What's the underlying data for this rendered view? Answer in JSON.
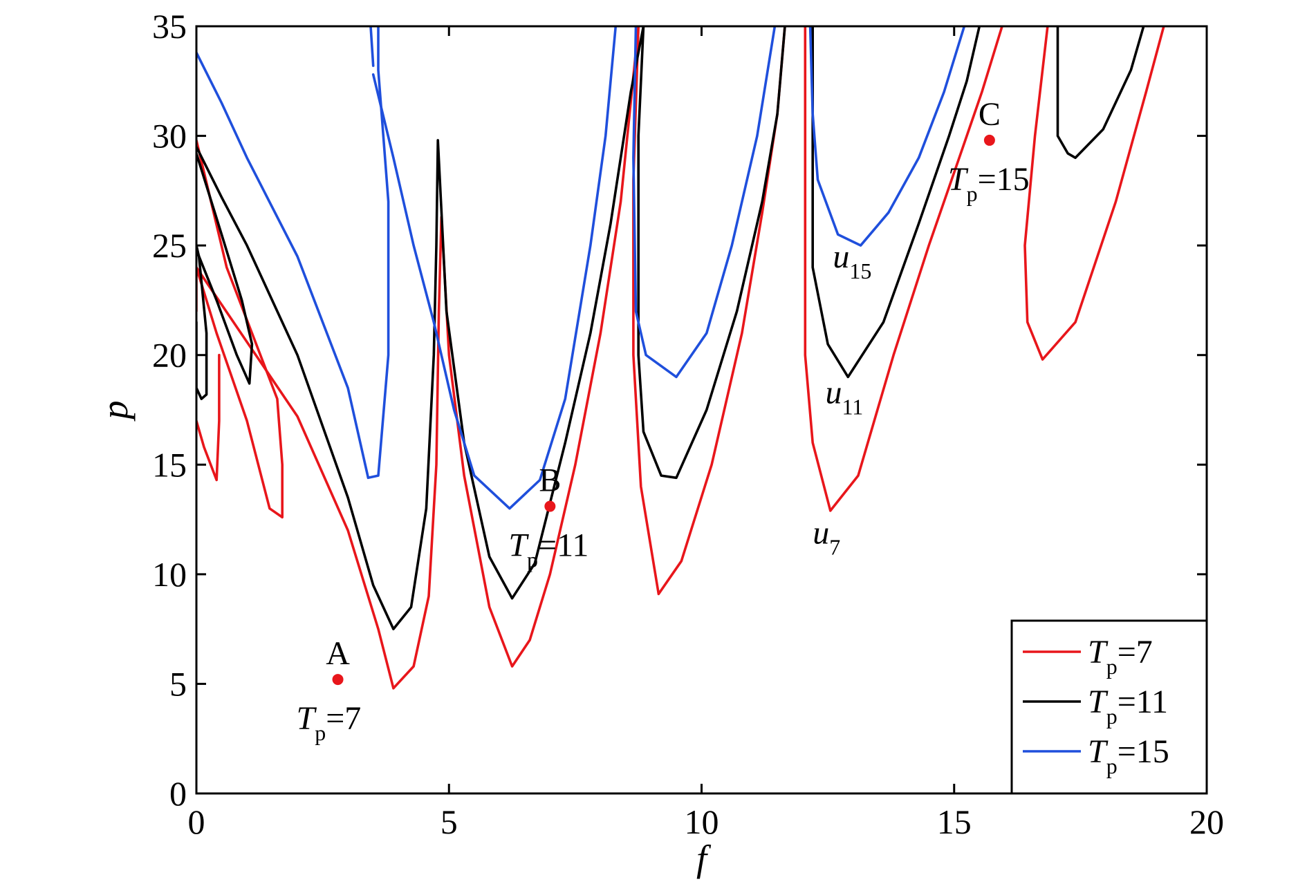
{
  "chart_data": {
    "type": "line",
    "title": "",
    "xlabel": "f",
    "ylabel": "p",
    "xlim": [
      0,
      20
    ],
    "ylim": [
      0,
      35
    ],
    "xticks": [
      0,
      5,
      10,
      15,
      20
    ],
    "yticks": [
      0,
      5,
      10,
      15,
      20,
      25,
      30,
      35
    ],
    "grid": false,
    "legend": {
      "position": "bottom-right",
      "entries": [
        {
          "var": "T",
          "sub": "p",
          "rest": "=7",
          "color": "#e8161b"
        },
        {
          "var": "T",
          "sub": "p",
          "rest": "=11",
          "color": "#000000"
        },
        {
          "var": "T",
          "sub": "p",
          "rest": "=15",
          "color": "#1f4fdc"
        }
      ]
    },
    "series": [
      {
        "key": "Tp7",
        "color": "#e8161b",
        "segments": [
          [
            [
              0,
              17
            ],
            [
              0.15,
              15.8
            ],
            [
              0.4,
              14.3
            ],
            [
              0.45,
              17
            ],
            [
              0.45,
              20
            ]
          ],
          [
            [
              0,
              22
            ],
            [
              0,
              24
            ],
            [
              0.4,
              21
            ],
            [
              1,
              17
            ],
            [
              1.45,
              13
            ],
            [
              1.7,
              12.6
            ],
            [
              1.7,
              15
            ],
            [
              1.6,
              18
            ],
            [
              1.1,
              21
            ],
            [
              0.6,
              24
            ],
            [
              0,
              29.8
            ]
          ],
          [
            [
              0,
              24
            ],
            [
              1,
              20.6
            ],
            [
              2,
              17.2
            ],
            [
              3,
              12
            ],
            [
              3.6,
              7.5
            ],
            [
              3.9,
              4.8
            ],
            [
              4.3,
              5.8
            ],
            [
              4.6,
              9
            ],
            [
              4.75,
              15
            ],
            [
              4.8,
              22
            ],
            [
              4.85,
              26.3
            ],
            [
              5,
              20
            ],
            [
              5.3,
              14.5
            ],
            [
              5.8,
              8.5
            ],
            [
              6.25,
              5.8
            ],
            [
              6.6,
              7
            ],
            [
              7,
              10
            ],
            [
              7.5,
              15
            ],
            [
              8,
              21
            ],
            [
              8.4,
              27
            ],
            [
              8.75,
              35
            ]
          ],
          [
            [
              8.75,
              35
            ],
            [
              8.65,
              28
            ],
            [
              8.65,
              20
            ],
            [
              8.8,
              14
            ],
            [
              9.15,
              9.1
            ],
            [
              9.6,
              10.6
            ],
            [
              10.2,
              15
            ],
            [
              10.8,
              21
            ],
            [
              11.2,
              26.5
            ],
            [
              11.5,
              31
            ],
            [
              11.65,
              35
            ]
          ],
          [
            [
              12.05,
              35
            ],
            [
              12.05,
              28
            ],
            [
              12.05,
              20
            ],
            [
              12.2,
              16
            ],
            [
              12.55,
              12.9
            ],
            [
              13.1,
              14.5
            ],
            [
              13.8,
              20
            ],
            [
              14.5,
              25
            ],
            [
              15.1,
              29
            ],
            [
              15.55,
              32
            ],
            [
              15.95,
              35
            ]
          ],
          [
            [
              16.85,
              35
            ],
            [
              16.6,
              30
            ],
            [
              16.4,
              25
            ],
            [
              16.45,
              21.5
            ],
            [
              16.75,
              19.8
            ],
            [
              17.4,
              21.5
            ],
            [
              18.2,
              27
            ],
            [
              18.8,
              32
            ],
            [
              19.15,
              35
            ]
          ]
        ]
      },
      {
        "key": "Tp11",
        "color": "#000000",
        "segments": [
          [
            [
              0,
              21.5
            ],
            [
              0,
              18.5
            ],
            [
              0.1,
              18
            ],
            [
              0.2,
              18.2
            ],
            [
              0.2,
              21
            ],
            [
              0.05,
              24.5
            ],
            [
              0,
              25
            ]
          ],
          [
            [
              0,
              24.8
            ],
            [
              0.4,
              22.5
            ],
            [
              0.8,
              20
            ],
            [
              1.05,
              18.7
            ],
            [
              1.1,
              20.5
            ],
            [
              0.9,
              22.5
            ],
            [
              0.5,
              25.5
            ],
            [
              0,
              29.2
            ]
          ],
          [
            [
              0,
              29.5
            ],
            [
              0.5,
              27.2
            ],
            [
              1,
              25
            ],
            [
              2,
              20
            ],
            [
              3,
              13.5
            ],
            [
              3.5,
              9.5
            ],
            [
              3.9,
              7.5
            ],
            [
              4.25,
              8.5
            ],
            [
              4.55,
              13
            ],
            [
              4.7,
              20
            ],
            [
              4.75,
              25
            ],
            [
              4.78,
              29.8
            ],
            [
              4.95,
              22
            ],
            [
              5.3,
              16
            ],
            [
              5.8,
              10.8
            ],
            [
              6.25,
              8.9
            ],
            [
              6.7,
              10.5
            ],
            [
              7.3,
              16
            ],
            [
              7.8,
              21
            ],
            [
              8.2,
              26
            ],
            [
              8.6,
              32
            ],
            [
              8.85,
              35
            ]
          ],
          [
            [
              8.85,
              35
            ],
            [
              8.75,
              30
            ],
            [
              8.75,
              20
            ],
            [
              8.85,
              16.5
            ],
            [
              9.2,
              14.5
            ],
            [
              9.5,
              14.4
            ],
            [
              10.1,
              17.5
            ],
            [
              10.7,
              22
            ],
            [
              11.2,
              27
            ],
            [
              11.5,
              31
            ],
            [
              11.65,
              35
            ]
          ],
          [
            [
              12.2,
              35
            ],
            [
              12.2,
              30
            ],
            [
              12.2,
              24
            ],
            [
              12.5,
              20.5
            ],
            [
              12.9,
              19
            ],
            [
              13.6,
              21.5
            ],
            [
              14.3,
              26
            ],
            [
              14.9,
              30
            ],
            [
              15.25,
              32.5
            ],
            [
              15.5,
              35
            ]
          ],
          [
            [
              17.05,
              35
            ],
            [
              17.05,
              30
            ],
            [
              17.25,
              29.2
            ],
            [
              17.4,
              29
            ],
            [
              17.95,
              30.3
            ],
            [
              18.5,
              33
            ],
            [
              18.75,
              35
            ]
          ]
        ]
      },
      {
        "key": "Tp15",
        "color": "#1f4fdc",
        "segments": [
          [
            [
              0,
              33.8
            ],
            [
              0.5,
              31.5
            ],
            [
              1,
              29
            ],
            [
              2,
              24.5
            ],
            [
              3,
              18.5
            ],
            [
              3.4,
              14.4
            ],
            [
              3.6,
              14.5
            ],
            [
              3.8,
              20
            ],
            [
              3.8,
              27
            ],
            [
              3.6,
              33
            ],
            [
              3.6,
              35
            ]
          ],
          [
            [
              3.45,
              35
            ],
            [
              3.5,
              33.2
            ]
          ],
          [
            [
              3.5,
              32.8
            ],
            [
              3.9,
              29
            ],
            [
              4.3,
              25
            ],
            [
              4.7,
              21.5
            ],
            [
              5.1,
              17.5
            ],
            [
              5.5,
              14.5
            ],
            [
              6.2,
              13
            ],
            [
              6.8,
              14.3
            ],
            [
              7.3,
              18
            ],
            [
              7.8,
              25
            ],
            [
              8.1,
              30
            ],
            [
              8.3,
              35
            ]
          ],
          [
            [
              8.7,
              35
            ],
            [
              8.65,
              29
            ],
            [
              8.7,
              22
            ],
            [
              8.9,
              20
            ],
            [
              9.5,
              19
            ],
            [
              10.1,
              21
            ],
            [
              10.6,
              25
            ],
            [
              11.1,
              30
            ],
            [
              11.45,
              35
            ]
          ],
          [
            [
              12.15,
              35
            ],
            [
              12.2,
              31
            ],
            [
              12.3,
              28
            ],
            [
              12.7,
              25.5
            ],
            [
              13.15,
              25
            ],
            [
              13.7,
              26.5
            ],
            [
              14.3,
              29
            ],
            [
              14.8,
              32
            ],
            [
              15.2,
              35
            ]
          ]
        ]
      }
    ],
    "points": [
      {
        "label": "A",
        "x": 2.8,
        "y": 5.2,
        "color": "#e8161b",
        "note": {
          "var": "T",
          "sub": "p",
          "rest": "=7"
        }
      },
      {
        "label": "B",
        "x": 7.0,
        "y": 13.1,
        "color": "#e8161b",
        "note": {
          "var": "T",
          "sub": "p",
          "rest": "=11"
        }
      },
      {
        "label": "C",
        "x": 15.7,
        "y": 29.8,
        "color": "#e8161b",
        "note": {
          "var": "T",
          "sub": "p",
          "rest": "=15"
        }
      }
    ],
    "curve_labels": [
      {
        "var": "u",
        "sub": "15",
        "x": 12.6,
        "y": 24.0
      },
      {
        "var": "u",
        "sub": "11",
        "x": 12.45,
        "y": 17.8
      },
      {
        "var": "u",
        "sub": "7",
        "x": 12.2,
        "y": 11.4
      }
    ]
  }
}
